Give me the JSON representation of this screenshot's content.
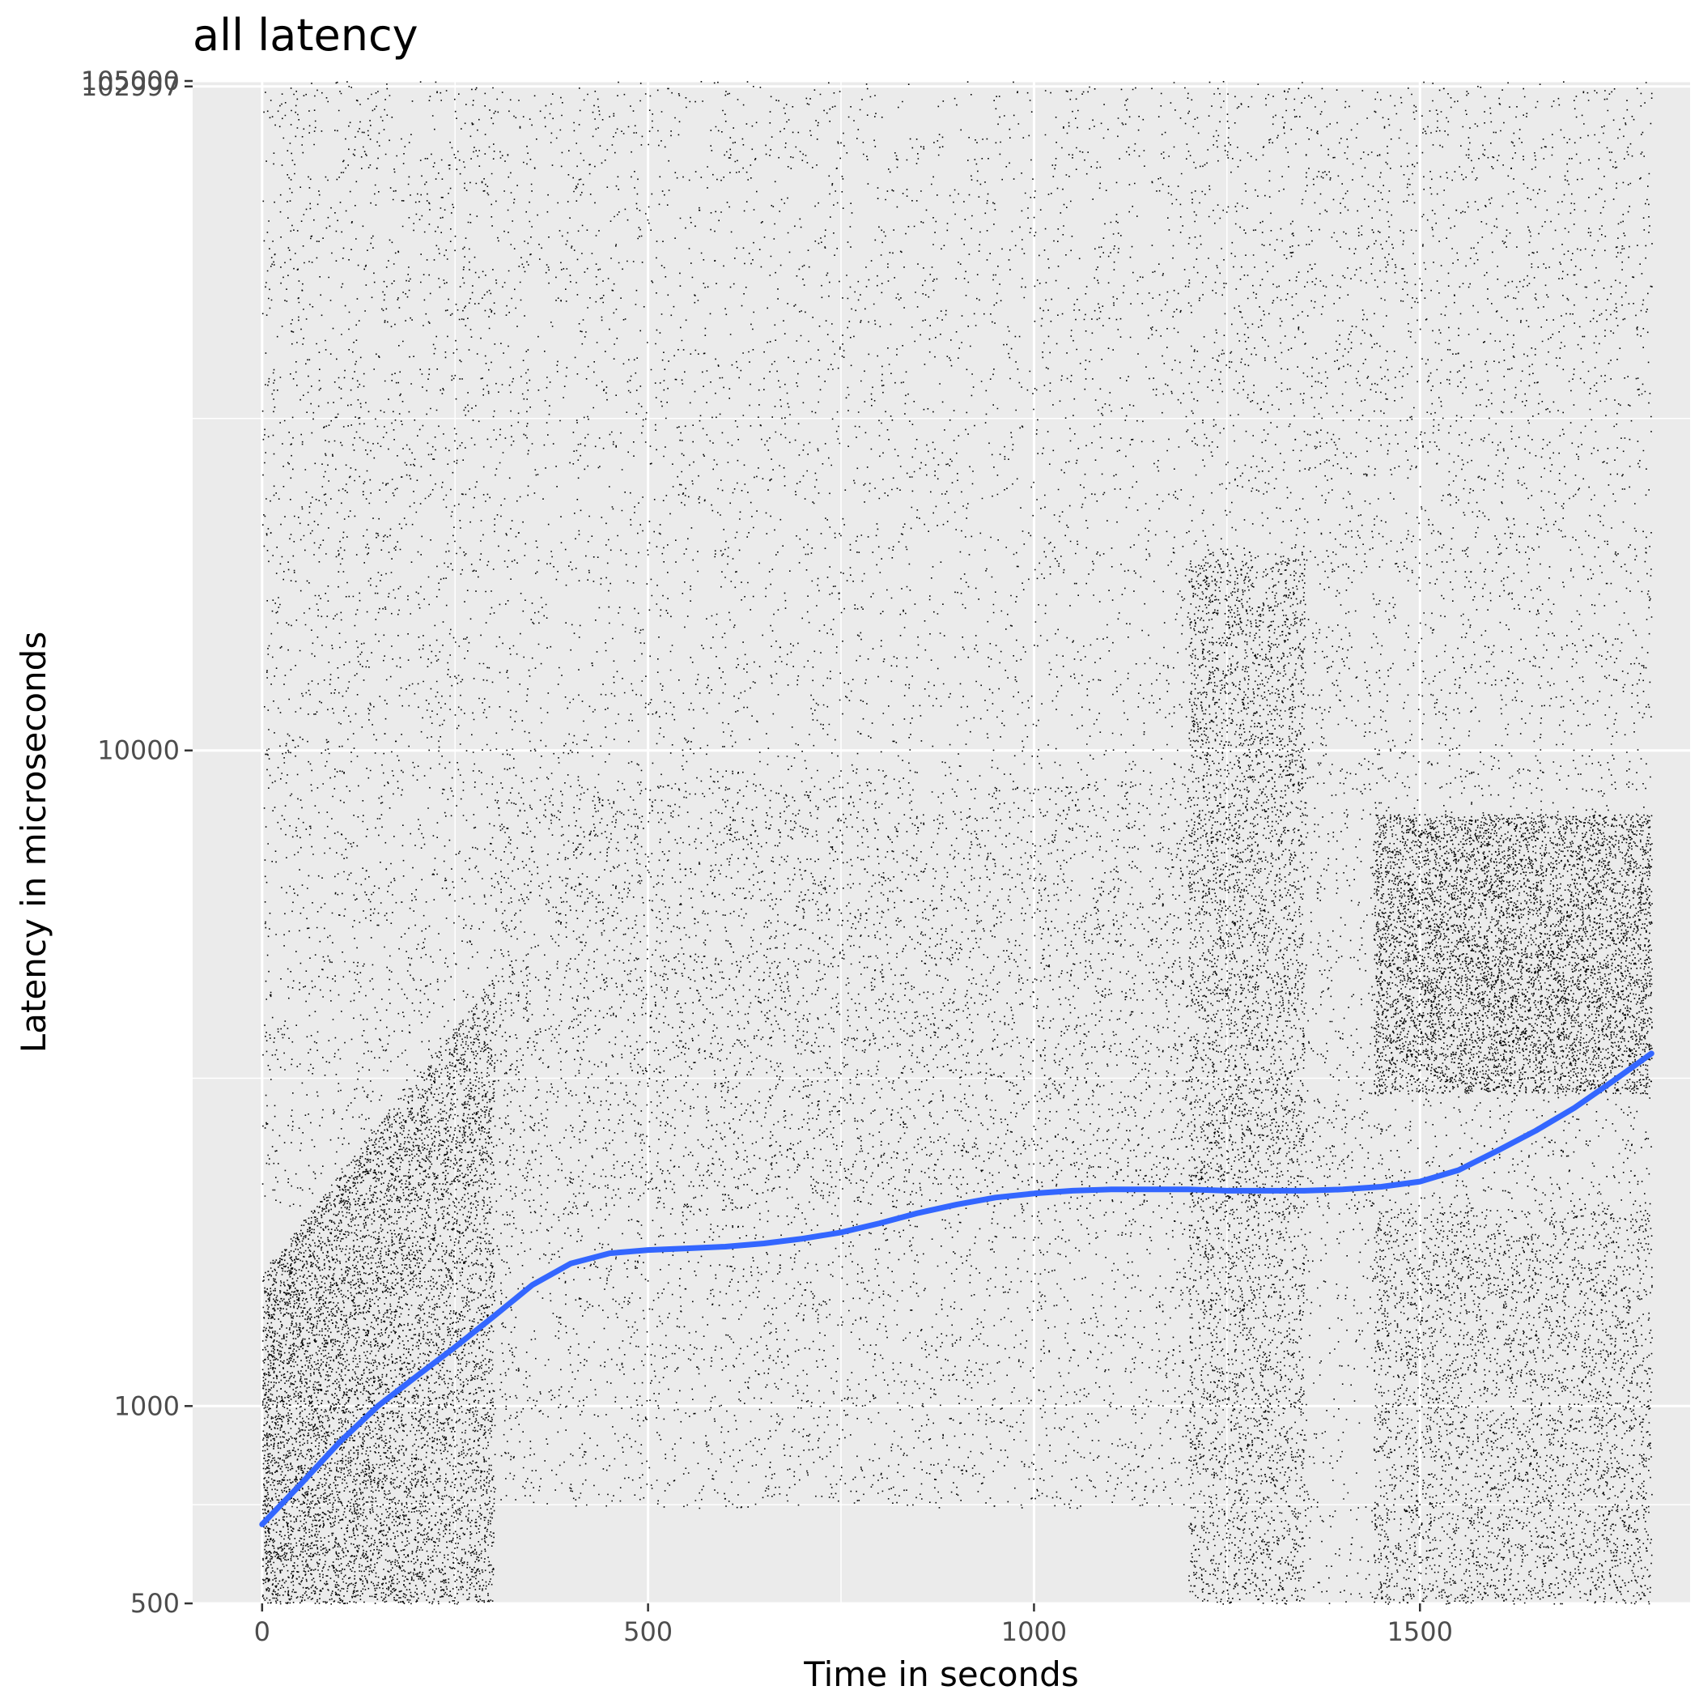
{
  "chart_data": {
    "type": "scatter",
    "title": "all latency",
    "xlabel": "Time in seconds",
    "ylabel": "Latency in microseconds",
    "x_scale": "linear",
    "y_scale": "log10",
    "xlim": [
      -90,
      1850
    ],
    "ylim": [
      500,
      105000
    ],
    "x_ticks": [
      0,
      500,
      1000,
      1500
    ],
    "x_tick_labels": [
      "0",
      "500",
      "1000",
      "1500"
    ],
    "y_ticks": [
      500,
      1000,
      10000,
      102997,
      105000
    ],
    "y_tick_labels": [
      "500",
      "1000",
      "10000",
      "102997",
      "105000"
    ],
    "grid": true,
    "legend": "none",
    "colors": {
      "panel_background": "#ebebeb",
      "grid_major": "#ffffff",
      "points": "#000000",
      "smooth_line": "#3366ff"
    },
    "series": [
      {
        "type": "scatter",
        "description_density": "dense point cloud of individual request latencies",
        "bands": [
          {
            "x": [
              0,
              300
            ],
            "y_low": 500,
            "y_high_start": 1600,
            "y_high_end": 4500,
            "density": 1.0
          },
          {
            "x": [
              300,
              1200
            ],
            "y_low": 700,
            "y_high": 9000,
            "density": 0.95
          },
          {
            "x": [
              1200,
              1350
            ],
            "y_low": 500,
            "y_high": 20000,
            "density": 0.6
          },
          {
            "x": [
              1350,
              1440
            ],
            "y_low": 500,
            "y_high": 3000,
            "density": 0.05
          },
          {
            "x": [
              1440,
              1800
            ],
            "y_low_upper": 3000,
            "y_high_upper": 8000,
            "y_low_lower": 500,
            "y_high_lower": 2000,
            "density": 0.85
          }
        ]
      },
      {
        "type": "line",
        "x": [
          0,
          50,
          100,
          150,
          200,
          250,
          300,
          350,
          400,
          450,
          500,
          550,
          600,
          650,
          700,
          750,
          800,
          850,
          900,
          950,
          1000,
          1050,
          1100,
          1150,
          1200,
          1250,
          1300,
          1350,
          1400,
          1450,
          1500,
          1550,
          1600,
          1650,
          1700,
          1750,
          1800
        ],
        "y": [
          660,
          760,
          880,
          1000,
          1110,
          1230,
          1370,
          1530,
          1650,
          1710,
          1730,
          1740,
          1750,
          1770,
          1800,
          1840,
          1900,
          1970,
          2030,
          2080,
          2110,
          2130,
          2140,
          2140,
          2140,
          2130,
          2130,
          2130,
          2140,
          2160,
          2200,
          2290,
          2450,
          2630,
          2850,
          3130,
          3450
        ]
      }
    ]
  }
}
